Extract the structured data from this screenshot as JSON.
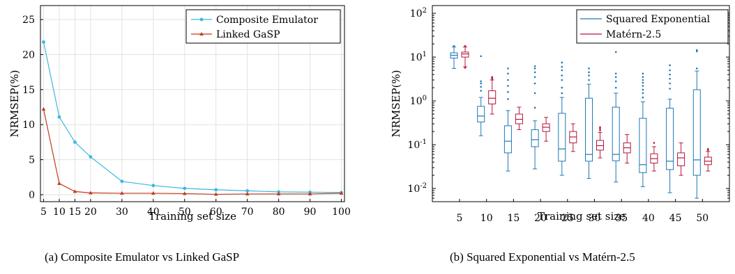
{
  "captions": {
    "a": "(a) Composite Emulator vs Linked GaSP",
    "b": "(b) Squared Exponential vs Matérn-2.5"
  },
  "chart_data": [
    {
      "type": "line",
      "xlabel": "Training set size",
      "ylabel": "NRMSEP(%)",
      "xlim": [
        4,
        101
      ],
      "ylim": [
        -1,
        27
      ],
      "xticks": [
        5,
        10,
        15,
        20,
        30,
        40,
        50,
        60,
        70,
        80,
        90,
        100
      ],
      "yticks": [
        0,
        5,
        10,
        15,
        20,
        25
      ],
      "grid": true,
      "legend_position": "top-right",
      "x": [
        5,
        10,
        15,
        20,
        30,
        40,
        50,
        60,
        70,
        80,
        90,
        100
      ],
      "series": [
        {
          "name": "Composite Emulator",
          "color": "#3bb8de",
          "marker": "circle",
          "values": [
            21.8,
            11.1,
            7.5,
            5.4,
            1.9,
            1.3,
            0.9,
            0.7,
            0.55,
            0.4,
            0.35,
            0.3
          ]
        },
        {
          "name": "Linked GaSP",
          "color": "#c0391b",
          "marker": "triangle",
          "values": [
            12.2,
            1.6,
            0.45,
            0.25,
            0.2,
            0.2,
            0.15,
            0.05,
            0.1,
            0.1,
            0.1,
            0.2
          ]
        }
      ]
    },
    {
      "type": "box",
      "xlabel": "Training set size",
      "ylabel": "NRMSEP(%)",
      "yscale": "log",
      "ylim": [
        0.005,
        150
      ],
      "ytick_labels": [
        "10^-2",
        "10^-1",
        "10^0",
        "10^1",
        "10^2"
      ],
      "ytick_values": [
        0.01,
        0.1,
        1,
        10,
        100
      ],
      "categories": [
        5,
        10,
        15,
        20,
        25,
        30,
        35,
        40,
        45,
        50
      ],
      "grid": false,
      "legend_position": "top-right",
      "series": [
        {
          "name": "Squared Exponential",
          "color": "#1f77b4",
          "boxes": [
            {
              "whislo": 5.5,
              "q1": 9.5,
              "med": 11,
              "q3": 12.5,
              "whishi": 17,
              "fliers": [
                18
              ]
            },
            {
              "whislo": 0.16,
              "q1": 0.33,
              "med": 0.45,
              "q3": 0.75,
              "whishi": 1.2,
              "fliers": [
                1.7,
                2.1,
                2.5,
                2.8,
                10.5
              ]
            },
            {
              "whislo": 0.025,
              "q1": 0.065,
              "med": 0.12,
              "q3": 0.27,
              "whishi": 0.6,
              "fliers": [
                1.1,
                1.6,
                2.2,
                3.0,
                4.2,
                5.5
              ]
            },
            {
              "whislo": 0.028,
              "q1": 0.09,
              "med": 0.13,
              "q3": 0.22,
              "whishi": 0.35,
              "fliers": [
                0.7,
                1.5,
                2.5,
                3.5,
                4.5,
                5.5,
                6.2
              ]
            },
            {
              "whislo": 0.02,
              "q1": 0.042,
              "med": 0.08,
              "q3": 0.52,
              "whishi": 1.2,
              "fliers": [
                1.5,
                2.0,
                3.0,
                3.8,
                5.0,
                6.0,
                7.5
              ]
            },
            {
              "whislo": 0.017,
              "q1": 0.042,
              "med": 0.06,
              "q3": 1.15,
              "whishi": 2.4,
              "fliers": [
                3.0,
                3.8,
                4.5,
                5.5
              ]
            },
            {
              "whislo": 0.014,
              "q1": 0.043,
              "med": 0.06,
              "q3": 0.72,
              "whishi": 1.5,
              "fliers": [
                2.0,
                2.8,
                3.5,
                4.2,
                13
              ]
            },
            {
              "whislo": 0.011,
              "q1": 0.023,
              "med": 0.035,
              "q3": 0.4,
              "whishi": 0.95,
              "fliers": [
                1.2,
                1.5,
                1.8,
                2.2,
                2.6,
                3.0,
                3.5,
                4.2
              ]
            },
            {
              "whislo": 0.008,
              "q1": 0.027,
              "med": 0.042,
              "q3": 0.68,
              "whishi": 1.1,
              "fliers": [
                1.9,
                2.5,
                3.2,
                4.0,
                5.0,
                6.5
              ]
            },
            {
              "whislo": 0.006,
              "q1": 0.02,
              "med": 0.045,
              "q3": 1.8,
              "whishi": 4.8,
              "fliers": [
                5.5,
                13.5,
                14.5
              ]
            }
          ]
        },
        {
          "name": "Matérn-2.5",
          "color": "#b5173a",
          "boxes": [
            {
              "whislo": 6.0,
              "q1": 10,
              "med": 11.8,
              "q3": 13,
              "whishi": 17,
              "fliers": [
                18,
                5.7
              ]
            },
            {
              "whislo": 0.5,
              "q1": 0.85,
              "med": 1.15,
              "q3": 1.7,
              "whishi": 3.0,
              "fliers": [
                3.2,
                3.4,
                3.5
              ]
            },
            {
              "whislo": 0.22,
              "q1": 0.3,
              "med": 0.38,
              "q3": 0.5,
              "whishi": 0.72,
              "fliers": []
            },
            {
              "whislo": 0.12,
              "q1": 0.2,
              "med": 0.25,
              "q3": 0.3,
              "whishi": 0.42,
              "fliers": []
            },
            {
              "whislo": 0.07,
              "q1": 0.11,
              "med": 0.15,
              "q3": 0.2,
              "whishi": 0.3,
              "fliers": []
            },
            {
              "whislo": 0.05,
              "q1": 0.075,
              "med": 0.095,
              "q3": 0.125,
              "whishi": 0.19,
              "fliers": [
                0.21,
                0.23,
                0.25
              ]
            },
            {
              "whislo": 0.038,
              "q1": 0.065,
              "med": 0.085,
              "q3": 0.11,
              "whishi": 0.17,
              "fliers": []
            },
            {
              "whislo": 0.025,
              "q1": 0.038,
              "med": 0.048,
              "q3": 0.062,
              "whishi": 0.09,
              "fliers": [
                0.11
              ]
            },
            {
              "whislo": 0.02,
              "q1": 0.033,
              "med": 0.05,
              "q3": 0.065,
              "whishi": 0.11,
              "fliers": []
            },
            {
              "whislo": 0.025,
              "q1": 0.035,
              "med": 0.042,
              "q3": 0.052,
              "whishi": 0.07,
              "fliers": [
                0.075,
                0.08
              ]
            }
          ]
        }
      ]
    }
  ]
}
